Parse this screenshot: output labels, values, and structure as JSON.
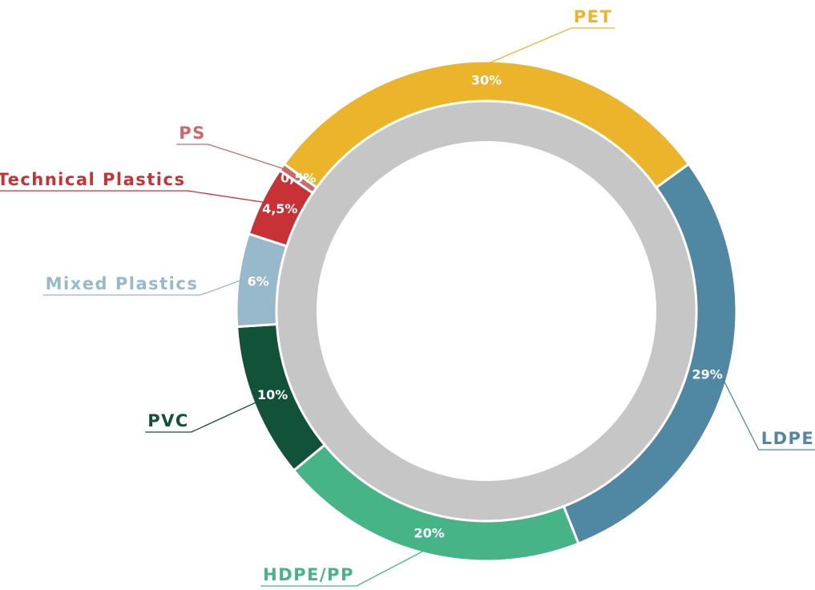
{
  "chart_data": {
    "type": "donut",
    "categories": [
      "PET",
      "LDPE",
      "HDPE/PP",
      "PVC",
      "Mixed Plastics",
      "Technical Plastics",
      "PS"
    ],
    "values": [
      30,
      29,
      20,
      10,
      6,
      4.5,
      0.5
    ],
    "value_labels": [
      "30%",
      "29%",
      "20%",
      "10%",
      "6%",
      "4,5%",
      "0,5%"
    ],
    "colors": [
      "#ebb42a",
      "#5088a3",
      "#47b488",
      "#115238",
      "#98b8cb",
      "#c83135",
      "#c96a6d"
    ]
  }
}
